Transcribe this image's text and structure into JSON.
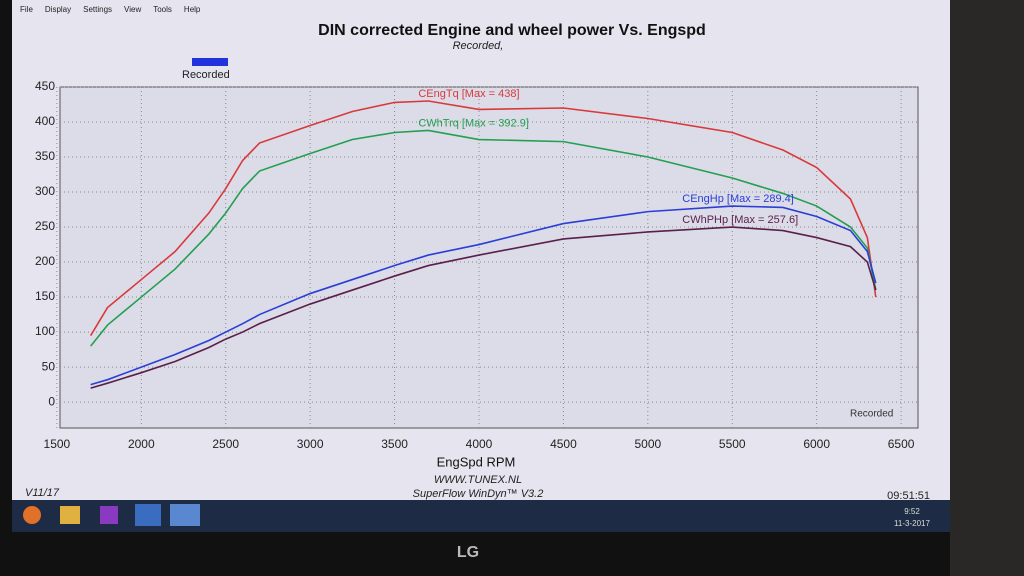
{
  "menu": [
    "File",
    "Display",
    "Settings",
    "View",
    "Tools",
    "Help"
  ],
  "chart_data": {
    "type": "line",
    "title": "DIN corrected Engine and wheel power Vs. Engspd",
    "subtitle": "Recorded,",
    "legend": {
      "label": "Recorded",
      "color": "#2233dd"
    },
    "x_label": "EngSpd RPM",
    "end_label": "Recorded",
    "x": [
      1700,
      1800,
      2000,
      2200,
      2400,
      2500,
      2600,
      2700,
      3000,
      3250,
      3500,
      3700,
      4000,
      4500,
      5000,
      5500,
      5800,
      6000,
      6200,
      6300,
      6350
    ],
    "series": [
      {
        "label": "CEngTq [Max = 438]",
        "color": "#d83a3a",
        "values": [
          95,
          135,
          175,
          215,
          270,
          305,
          345,
          370,
          395,
          415,
          428,
          430,
          418,
          420,
          405,
          385,
          360,
          335,
          290,
          235,
          150
        ]
      },
      {
        "label": "CWhTrq [Max = 392.9]",
        "color": "#22a050",
        "values": [
          80,
          110,
          150,
          190,
          240,
          270,
          305,
          330,
          355,
          375,
          385,
          388,
          375,
          372,
          350,
          320,
          298,
          280,
          250,
          220,
          160
        ]
      },
      {
        "label": "CEngHp [Max = 289.4]",
        "color": "#2a3ed8",
        "values": [
          25,
          32,
          50,
          68,
          88,
          100,
          112,
          125,
          155,
          175,
          195,
          210,
          225,
          255,
          272,
          280,
          278,
          265,
          245,
          215,
          170
        ]
      },
      {
        "label": "CWhPHp [Max = 257.6]",
        "color": "#5a1f4a",
        "values": [
          20,
          27,
          42,
          58,
          78,
          90,
          100,
          112,
          140,
          160,
          180,
          195,
          210,
          233,
          243,
          250,
          245,
          235,
          222,
          200,
          160
        ]
      }
    ],
    "xlim": [
      1400,
      6600
    ],
    "xticks": [
      1500,
      2000,
      2500,
      3000,
      3500,
      4000,
      4500,
      5000,
      5500,
      6000,
      6500
    ],
    "ylim": [
      -37,
      450
    ],
    "yticks": [
      0,
      50,
      100,
      150,
      200,
      250,
      300,
      350,
      400,
      450
    ],
    "grid": true
  },
  "footer": {
    "left": "V11/17",
    "site": "WWW.TUNEX.NL",
    "software": "SuperFlow WinDyn™ V3.2",
    "clock": "09:51:51"
  },
  "taskbar": {
    "time": "9:52",
    "date": "11-3-2017"
  },
  "brand": "LG"
}
